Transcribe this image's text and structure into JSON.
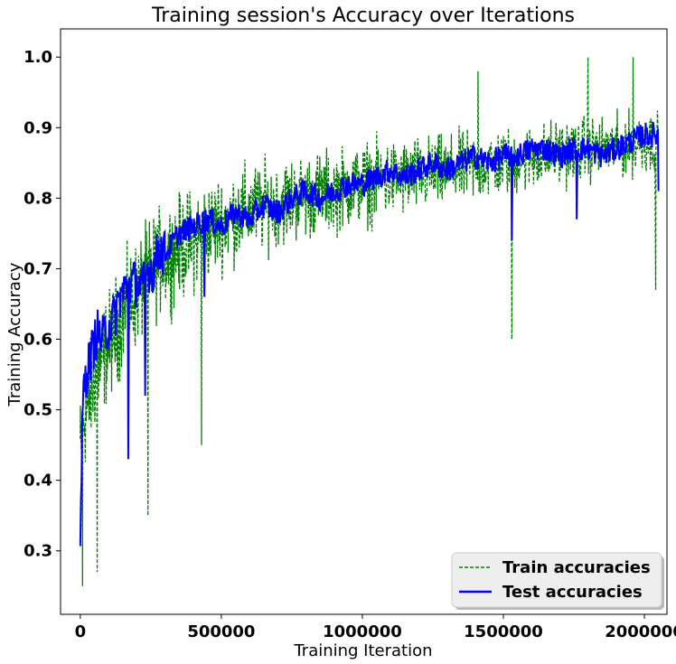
{
  "chart_data": {
    "type": "line",
    "title": "Training session's Accuracy over Iterations",
    "xlabel": "Training Iteration",
    "ylabel": "Training Accuracy",
    "xlim": [
      -70000,
      2080000
    ],
    "ylim": [
      0.21,
      1.04
    ],
    "xticks": [
      0,
      500000,
      1000000,
      1500000,
      2000000
    ],
    "xtick_labels": [
      "0",
      "500000",
      "1000000",
      "1500000",
      "2000000"
    ],
    "yticks": [
      0.3,
      0.4,
      0.5,
      0.6,
      0.7,
      0.8,
      0.9,
      1.0
    ],
    "ytick_labels": [
      "0.3",
      "0.4",
      "0.5",
      "0.6",
      "0.7",
      "0.8",
      "0.9",
      "1.0"
    ],
    "grid": false,
    "legend_position": "lower-right",
    "series": [
      {
        "name": "Train accuracies",
        "color": "#008000",
        "style": "dashed",
        "trend": {
          "x": [
            0,
            25000,
            50000,
            100000,
            150000,
            200000,
            250000,
            300000,
            400000,
            500000,
            600000,
            700000,
            800000,
            900000,
            1000000,
            1100000,
            1200000,
            1300000,
            1400000,
            1500000,
            1600000,
            1700000,
            1800000,
            1900000,
            2000000,
            2050000
          ],
          "y": [
            0.44,
            0.52,
            0.56,
            0.6,
            0.64,
            0.66,
            0.7,
            0.72,
            0.74,
            0.76,
            0.78,
            0.79,
            0.8,
            0.81,
            0.82,
            0.83,
            0.835,
            0.84,
            0.845,
            0.85,
            0.86,
            0.865,
            0.87,
            0.875,
            0.88,
            0.88
          ]
        },
        "band": {
          "x": [
            0,
            25000,
            50000,
            100000,
            150000,
            200000,
            250000,
            300000,
            400000,
            500000,
            600000,
            700000,
            800000,
            900000,
            1000000,
            1100000,
            1200000,
            1300000,
            1400000,
            1500000,
            1600000,
            1700000,
            1800000,
            1900000,
            2000000,
            2050000
          ],
          "low": [
            0.32,
            0.33,
            0.37,
            0.42,
            0.46,
            0.5,
            0.53,
            0.55,
            0.58,
            0.62,
            0.64,
            0.66,
            0.67,
            0.68,
            0.69,
            0.7,
            0.71,
            0.72,
            0.73,
            0.74,
            0.75,
            0.76,
            0.77,
            0.77,
            0.78,
            0.78
          ],
          "high": [
            0.6,
            0.66,
            0.7,
            0.75,
            0.8,
            0.83,
            0.86,
            0.88,
            0.9,
            0.92,
            0.93,
            0.93,
            0.94,
            0.94,
            0.95,
            0.95,
            0.95,
            0.95,
            0.96,
            0.96,
            0.96,
            0.97,
            0.97,
            0.97,
            0.98,
            0.98
          ]
        },
        "extremes": [
          {
            "x": 8000,
            "y": 0.25
          },
          {
            "x": 60000,
            "y": 0.27
          },
          {
            "x": 240000,
            "y": 0.35
          },
          {
            "x": 430000,
            "y": 0.45
          },
          {
            "x": 1530000,
            "y": 0.6
          },
          {
            "x": 2040000,
            "y": 0.67
          },
          {
            "x": 1410000,
            "y": 0.98
          },
          {
            "x": 1800000,
            "y": 1.0
          },
          {
            "x": 1960000,
            "y": 1.0
          }
        ]
      },
      {
        "name": "Test accuracies",
        "color": "#0000ff",
        "style": "solid",
        "x": [
          0,
          10000,
          20000,
          40000,
          60000,
          80000,
          100000,
          120000,
          140000,
          160000,
          180000,
          200000,
          220000,
          240000,
          260000,
          280000,
          300000,
          350000,
          400000,
          450000,
          500000,
          550000,
          600000,
          650000,
          700000,
          750000,
          800000,
          850000,
          900000,
          950000,
          1000000,
          1050000,
          1100000,
          1150000,
          1200000,
          1250000,
          1300000,
          1350000,
          1400000,
          1450000,
          1500000,
          1550000,
          1600000,
          1650000,
          1700000,
          1750000,
          1800000,
          1850000,
          1900000,
          1950000,
          2000000,
          2050000
        ],
        "y": [
          0.32,
          0.52,
          0.55,
          0.58,
          0.61,
          0.6,
          0.62,
          0.63,
          0.66,
          0.67,
          0.68,
          0.68,
          0.67,
          0.7,
          0.7,
          0.73,
          0.72,
          0.75,
          0.76,
          0.77,
          0.76,
          0.78,
          0.77,
          0.79,
          0.78,
          0.8,
          0.81,
          0.8,
          0.81,
          0.82,
          0.82,
          0.83,
          0.84,
          0.83,
          0.84,
          0.85,
          0.84,
          0.85,
          0.86,
          0.85,
          0.86,
          0.86,
          0.87,
          0.87,
          0.86,
          0.87,
          0.87,
          0.86,
          0.87,
          0.88,
          0.89,
          0.89
        ],
        "dips": [
          {
            "x": 170000,
            "y": 0.43
          },
          {
            "x": 230000,
            "y": 0.52
          },
          {
            "x": 440000,
            "y": 0.66
          },
          {
            "x": 1530000,
            "y": 0.74
          },
          {
            "x": 1760000,
            "y": 0.77
          },
          {
            "x": 2050000,
            "y": 0.81
          }
        ]
      }
    ]
  }
}
